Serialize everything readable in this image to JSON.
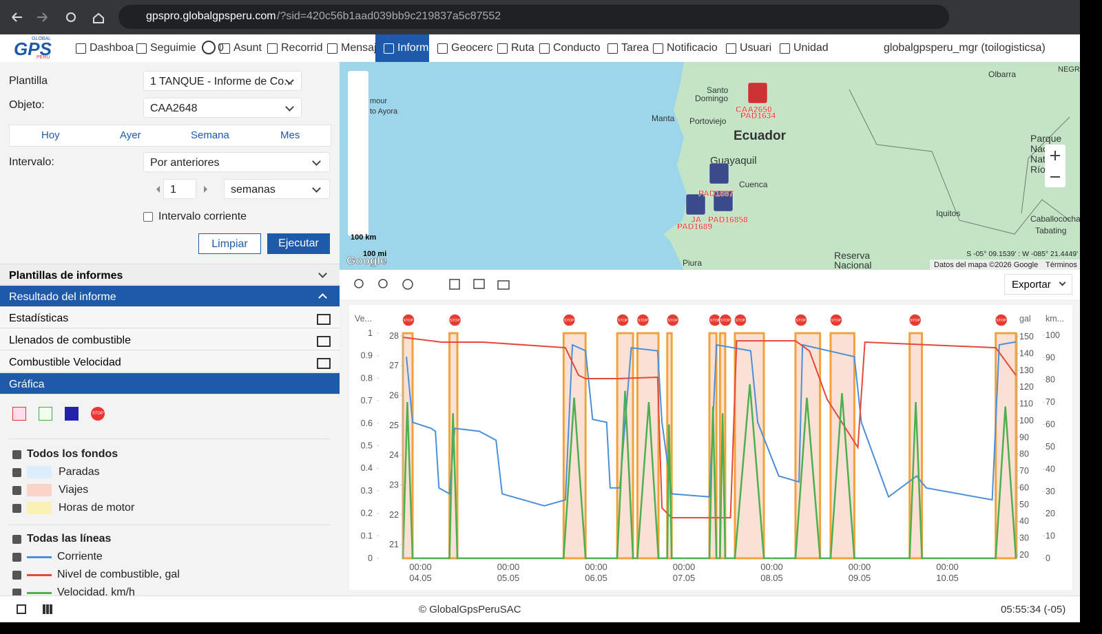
{
  "browser": {
    "url_host": "gpspro.globalgpsperu.com",
    "url_path": "/?sid=420c56b1aad039bb9c219837a5c87552"
  },
  "nav": {
    "logo": "GPS",
    "logo_top": "GLOBAL",
    "logo_bottom": "PERU",
    "badge": 0,
    "items": [
      "Dashboa",
      "Seguimie",
      "Asunt",
      "Recorrid",
      "Mensaj",
      "Inform",
      "Geocerc",
      "Ruta",
      "Conducto",
      "Tarea",
      "Notificacio",
      "Usuari",
      "Unidad"
    ],
    "user": "globalgpsperu_mgr (toilogisticsa)"
  },
  "form": {
    "template_label": "Plantilla",
    "template_value": "1 TANQUE - Informe de Co...",
    "object_label": "Objeto:",
    "object_value": "CAA2648",
    "tabs": [
      "Hoy",
      "Ayer",
      "Semana",
      "Mes"
    ],
    "interval_label": "Intervalo:",
    "interval_value": "Por anteriores",
    "count": 1,
    "unit": "semanas",
    "current_interval": "Intervalo corriente",
    "clear": "Limpiar",
    "run": "Ejecutar"
  },
  "sections": {
    "templates": "Plantillas de informes",
    "result": "Resultado del informe",
    "items": [
      "Estadísticas",
      "Llenados de combustible",
      "Combustible Velocidad"
    ],
    "graph": "Gráfica"
  },
  "legend": {
    "backgrounds_title": "Todos los fondos",
    "backgrounds": [
      {
        "name": "Paradas",
        "color": "#dcedfb"
      },
      {
        "name": "Viajes",
        "color": "#f8d4c8"
      },
      {
        "name": "Horas de motor",
        "color": "#faf2b4"
      }
    ],
    "lines_title": "Todas las líneas"
  },
  "map": {
    "places": [
      "Olbarra",
      "Santo",
      "Domingo",
      "Manta",
      "Portoviejo",
      "Ecuador",
      "Guayaquil",
      "Cuenca",
      "Iquitos",
      "Piura",
      "Parque",
      "Nacio",
      "Natu",
      "Río P",
      "Caballococha",
      "Tabating",
      "Reserva",
      "Nacional",
      "NEGR",
      "mour",
      "to Ayora"
    ],
    "vehicles": [
      "CAA2650",
      "PAD1634",
      "PAD1687",
      "JA",
      "PAD16858",
      "PAD1689"
    ],
    "coords": "S -05° 09.1539' : W -085° 21.4449'",
    "attribution": "Datos del mapa ©2026 Google",
    "terms": "Términos",
    "scale_km": "100 km",
    "scale_mi": "100 mi",
    "google": "Google"
  },
  "toolbar": {
    "export": "Exportar"
  },
  "footer": {
    "copyright": "© GlobalGpsPeruSAC",
    "time": "05:55:34 (-05)"
  },
  "chart_data": {
    "type": "line",
    "stop_label": "STOP",
    "y_label": "Ve...",
    "y3_label": "gal",
    "y4_label": "km...",
    "xlim": [
      -0.2,
      6.78
    ],
    "xticks": [
      {
        "value": 0,
        "label": "00:00\n04.05"
      },
      {
        "value": 1,
        "label": "00:00\n05.05"
      },
      {
        "value": 2,
        "label": "00:00\n06.05"
      },
      {
        "value": 3,
        "label": "00:00\n07.05"
      },
      {
        "value": 4,
        "label": "00:00\n08.05"
      },
      {
        "value": 5,
        "label": "00:00\n09.05"
      },
      {
        "value": 6,
        "label": "00:00\n10.05"
      }
    ],
    "ylim": [
      0,
      1
    ],
    "yticks": [
      0,
      0.1,
      0.2,
      0.3,
      0.4,
      0.5,
      0.6,
      0.7,
      0.8,
      0.9,
      1
    ],
    "y2lim": [
      20.54,
      28.09
    ],
    "y2ticks": [
      21,
      22,
      23,
      24,
      25,
      26,
      27,
      28
    ],
    "y3lim": [
      17.95,
      152.05
    ],
    "y3ticks": [
      20,
      30,
      40,
      50,
      60,
      70,
      80,
      90,
      100,
      110,
      120,
      130,
      140,
      150
    ],
    "y4lim": [
      0,
      100.9
    ],
    "y4ticks": [
      0,
      10,
      20,
      30,
      40,
      50,
      60,
      70,
      80,
      90,
      100
    ],
    "trips": [
      [
        -0.2,
        -0.09
      ],
      [
        0.33,
        0.42
      ],
      [
        1.63,
        1.88
      ],
      [
        2.24,
        2.42
      ],
      [
        2.47,
        2.71
      ],
      [
        2.81,
        2.86
      ],
      [
        3.29,
        3.37
      ],
      [
        3.41,
        3.47
      ],
      [
        3.58,
        3.91
      ],
      [
        4.27,
        4.55
      ],
      [
        4.67,
        4.94
      ],
      [
        5.57,
        5.71
      ],
      [
        6.55,
        6.78
      ]
    ],
    "series": [
      {
        "name": "Corriente",
        "color": "#4a8fdc",
        "axis": "y2",
        "x": [
          -0.16,
          -0.09,
          0.12,
          0.17,
          0.21,
          0.33,
          0.39,
          0.67,
          0.86,
          0.93,
          1.41,
          1.65,
          1.73,
          1.88,
          1.96,
          2.12,
          2.16,
          2.27,
          2.4,
          2.7,
          2.75,
          2.86,
          3.29,
          3.37,
          3.76,
          3.84,
          4.08,
          4.31,
          4.35,
          4.94,
          5.02,
          5.33,
          5.65,
          5.76,
          6.51,
          6.59,
          6.78
        ],
        "values": [
          27.3,
          25.1,
          24.9,
          24.8,
          22.9,
          22.7,
          24.9,
          24.8,
          24.5,
          22.7,
          22.3,
          22.5,
          27.7,
          27.5,
          25.2,
          25.1,
          22.9,
          22.9,
          27.6,
          27.5,
          25.1,
          22.7,
          22.6,
          27.7,
          27.5,
          25.1,
          23.3,
          23.1,
          27.7,
          27.3,
          25.1,
          22.6,
          23.3,
          22.9,
          22.5,
          27.7,
          27.8
        ]
      },
      {
        "name": "Nivel de combustible, gal",
        "color": "#e5473a",
        "axis": "y3",
        "x": [
          -0.2,
          0.24,
          0.71,
          1.65,
          1.8,
          1.88,
          2.24,
          2.7,
          2.75,
          2.86,
          3.53,
          3.6,
          4.27,
          4.43,
          4.63,
          4.98,
          5.06,
          6.55,
          6.78
        ],
        "values": [
          149.6,
          146.7,
          146.7,
          143.4,
          127.0,
          125.0,
          125.0,
          125.8,
          47.9,
          42.1,
          42.1,
          147.5,
          147.5,
          141.4,
          112.7,
          84.0,
          146.7,
          143.4,
          127.0
        ]
      },
      {
        "name": "Velocidad, km/h",
        "color": "#4caf50",
        "axis": "y4",
        "x": [
          -0.2,
          -0.15,
          -0.09,
          0.33,
          0.37,
          0.42,
          1.63,
          1.75,
          1.88,
          2.24,
          2.33,
          2.42,
          2.47,
          2.6,
          2.71,
          2.81,
          2.83,
          2.86,
          3.29,
          3.33,
          3.37,
          3.41,
          3.44,
          3.47,
          3.58,
          3.75,
          3.91,
          4.27,
          4.4,
          4.55,
          4.67,
          4.8,
          4.94,
          5.57,
          5.64,
          5.71,
          6.55,
          6.66,
          6.78
        ],
        "values": [
          0,
          70,
          0,
          0,
          65,
          0,
          0,
          72,
          0,
          0,
          75,
          0,
          0,
          70,
          0,
          0,
          60,
          0,
          0,
          68,
          0,
          0,
          65,
          0,
          0,
          78,
          0,
          0,
          72,
          0,
          0,
          74,
          0,
          0,
          70,
          0,
          0,
          68,
          0
        ]
      }
    ]
  }
}
